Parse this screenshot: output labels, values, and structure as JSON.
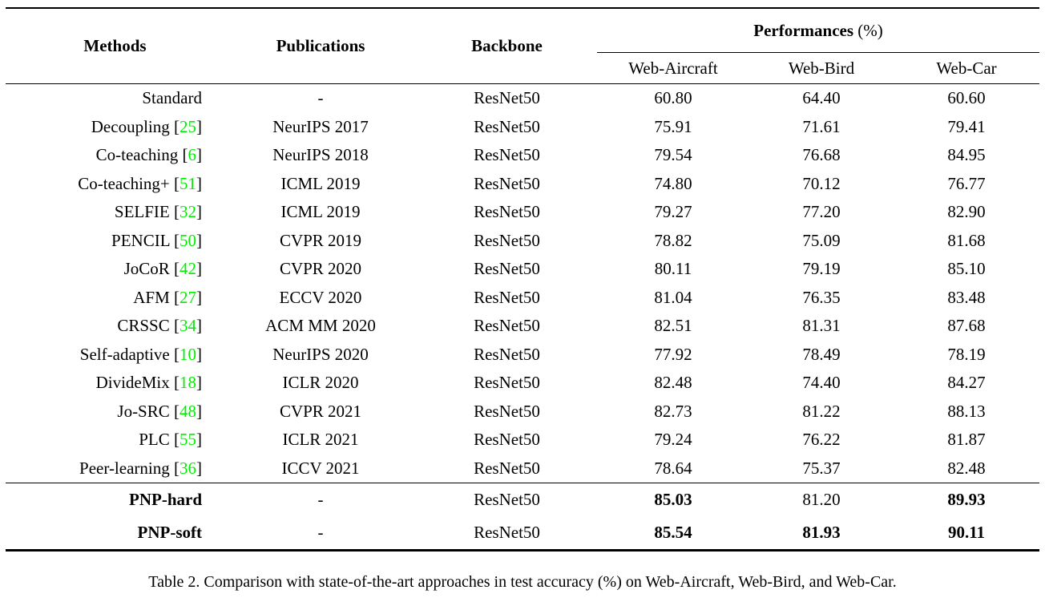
{
  "table": {
    "headers": {
      "methods": "Methods",
      "publications": "Publications",
      "backbone": "Backbone",
      "performances": "Performances",
      "performances_unit": " (%)",
      "sub": [
        "Web-Aircraft",
        "Web-Bird",
        "Web-Car"
      ]
    },
    "rows": [
      {
        "method": "Standard",
        "cite": "",
        "publication": "-",
        "backbone": "ResNet50",
        "values": [
          "60.80",
          "64.40",
          "60.60"
        ],
        "bold_method": false,
        "bold_values": [
          false,
          false,
          false
        ]
      },
      {
        "method": "Decoupling",
        "cite": "25",
        "publication": "NeurIPS 2017",
        "backbone": "ResNet50",
        "values": [
          "75.91",
          "71.61",
          "79.41"
        ],
        "bold_method": false,
        "bold_values": [
          false,
          false,
          false
        ]
      },
      {
        "method": "Co-teaching",
        "cite": "6",
        "publication": "NeurIPS 2018",
        "backbone": "ResNet50",
        "values": [
          "79.54",
          "76.68",
          "84.95"
        ],
        "bold_method": false,
        "bold_values": [
          false,
          false,
          false
        ]
      },
      {
        "method": "Co-teaching+",
        "cite": "51",
        "publication": "ICML 2019",
        "backbone": "ResNet50",
        "values": [
          "74.80",
          "70.12",
          "76.77"
        ],
        "bold_method": false,
        "bold_values": [
          false,
          false,
          false
        ]
      },
      {
        "method": "SELFIE",
        "cite": "32",
        "publication": "ICML 2019",
        "backbone": "ResNet50",
        "values": [
          "79.27",
          "77.20",
          "82.90"
        ],
        "bold_method": false,
        "bold_values": [
          false,
          false,
          false
        ]
      },
      {
        "method": "PENCIL",
        "cite": "50",
        "publication": "CVPR 2019",
        "backbone": "ResNet50",
        "values": [
          "78.82",
          "75.09",
          "81.68"
        ],
        "bold_method": false,
        "bold_values": [
          false,
          false,
          false
        ]
      },
      {
        "method": "JoCoR",
        "cite": "42",
        "publication": "CVPR 2020",
        "backbone": "ResNet50",
        "values": [
          "80.11",
          "79.19",
          "85.10"
        ],
        "bold_method": false,
        "bold_values": [
          false,
          false,
          false
        ]
      },
      {
        "method": "AFM",
        "cite": "27",
        "publication": "ECCV 2020",
        "backbone": "ResNet50",
        "values": [
          "81.04",
          "76.35",
          "83.48"
        ],
        "bold_method": false,
        "bold_values": [
          false,
          false,
          false
        ]
      },
      {
        "method": "CRSSC",
        "cite": "34",
        "publication": "ACM MM 2020",
        "backbone": "ResNet50",
        "values": [
          "82.51",
          "81.31",
          "87.68"
        ],
        "bold_method": false,
        "bold_values": [
          false,
          false,
          false
        ]
      },
      {
        "method": "Self-adaptive",
        "cite": "10",
        "publication": "NeurIPS 2020",
        "backbone": "ResNet50",
        "values": [
          "77.92",
          "78.49",
          "78.19"
        ],
        "bold_method": false,
        "bold_values": [
          false,
          false,
          false
        ]
      },
      {
        "method": "DivideMix",
        "cite": "18",
        "publication": "ICLR 2020",
        "backbone": "ResNet50",
        "values": [
          "82.48",
          "74.40",
          "84.27"
        ],
        "bold_method": false,
        "bold_values": [
          false,
          false,
          false
        ]
      },
      {
        "method": "Jo-SRC",
        "cite": "48",
        "publication": "CVPR 2021",
        "backbone": "ResNet50",
        "values": [
          "82.73",
          "81.22",
          "88.13"
        ],
        "bold_method": false,
        "bold_values": [
          false,
          false,
          false
        ]
      },
      {
        "method": "PLC",
        "cite": "55",
        "publication": "ICLR 2021",
        "backbone": "ResNet50",
        "values": [
          "79.24",
          "76.22",
          "81.87"
        ],
        "bold_method": false,
        "bold_values": [
          false,
          false,
          false
        ]
      },
      {
        "method": "Peer-learning",
        "cite": "36",
        "publication": "ICCV 2021",
        "backbone": "ResNet50",
        "values": [
          "78.64",
          "75.37",
          "82.48"
        ],
        "bold_method": false,
        "bold_values": [
          false,
          false,
          false
        ]
      }
    ],
    "pnp_rows": [
      {
        "method": "PNP-hard",
        "cite": "",
        "publication": "-",
        "backbone": "ResNet50",
        "values": [
          "85.03",
          "81.20",
          "89.93"
        ],
        "bold_method": true,
        "bold_values": [
          true,
          false,
          true
        ]
      },
      {
        "method": "PNP-soft",
        "cite": "",
        "publication": "-",
        "backbone": "ResNet50",
        "values": [
          "85.54",
          "81.93",
          "90.11"
        ],
        "bold_method": true,
        "bold_values": [
          true,
          true,
          true
        ]
      }
    ]
  },
  "caption": "Table 2. Comparison with state-of-the-art approaches in test accuracy (%) on Web-Aircraft, Web-Bird, and Web-Car.",
  "colors": {
    "citation_green": "#00ee00",
    "text_black": "#000000"
  }
}
